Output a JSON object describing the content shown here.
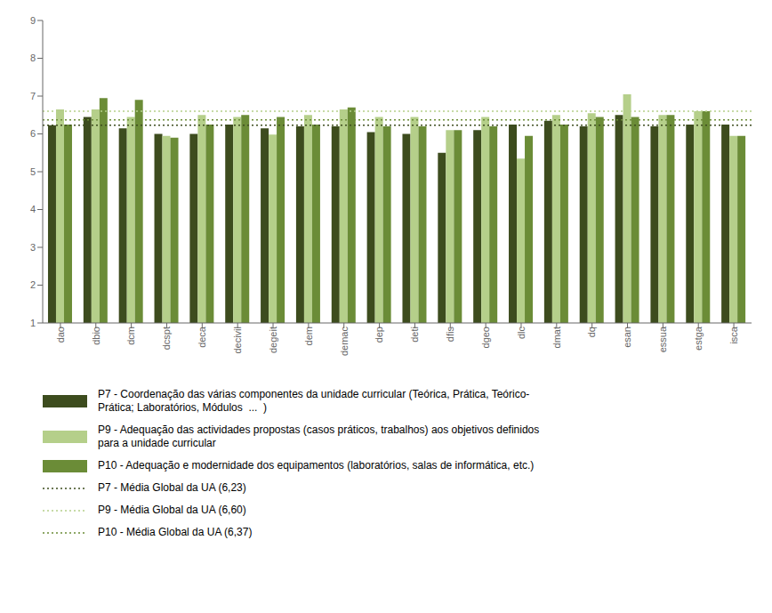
{
  "chart_data": {
    "type": "bar",
    "categories": [
      "dao",
      "dbio",
      "dcm",
      "dcspt",
      "deca",
      "decivil",
      "degeit",
      "dem",
      "demac",
      "dep",
      "deti",
      "dfis",
      "dgeo",
      "dlc",
      "dmat",
      "dq",
      "esan",
      "essua",
      "estga",
      "isca"
    ],
    "series": [
      {
        "name": "P7 - Coordenação das várias componentes da unidade curricular (Teórica, Prática, Teórico-\nPrática; Laboratórios, Módulos  ...  )",
        "color": "#3d4c1e",
        "values": [
          6.23,
          6.45,
          6.15,
          6.0,
          6.0,
          6.25,
          6.15,
          6.2,
          6.2,
          6.05,
          6.0,
          5.5,
          6.1,
          6.25,
          6.35,
          6.2,
          6.5,
          6.2,
          6.25,
          6.25
        ]
      },
      {
        "name": "P9 - Adequação das actividades propostas (casos práticos, trabalhos) aos objetivos definidos\npara a unidade curricular",
        "color": "#b5cf8a",
        "values": [
          6.65,
          6.65,
          6.45,
          5.95,
          6.5,
          6.45,
          5.98,
          6.5,
          6.65,
          6.45,
          6.45,
          6.1,
          6.45,
          5.35,
          6.5,
          6.55,
          7.05,
          6.5,
          6.6,
          5.95
        ]
      },
      {
        "name": "P10 - Adequação e modernidade dos equipamentos (laboratórios, salas de informática, etc.)",
        "color": "#6b8c37",
        "values": [
          6.25,
          6.95,
          6.9,
          5.9,
          6.25,
          6.5,
          6.45,
          6.25,
          6.7,
          6.2,
          6.2,
          6.1,
          6.2,
          5.95,
          6.25,
          6.45,
          6.45,
          6.5,
          6.6,
          5.95
        ]
      }
    ],
    "reference_lines": [
      {
        "name": "P7 - Média Global da UA (6,23)",
        "value": 6.23,
        "color": "#3d4c1e",
        "line_style": "dotted"
      },
      {
        "name": "P9 - Média Global da UA (6,60)",
        "value": 6.6,
        "color": "#b5cf8a",
        "line_style": "dotted"
      },
      {
        "name": "P10 - Média Global da UA (6,37)",
        "value": 6.37,
        "color": "#6b8c37",
        "line_style": "dotted"
      }
    ],
    "ylim": [
      1,
      9
    ],
    "yticks": [
      1,
      2,
      3,
      4,
      5,
      6,
      7,
      8,
      9
    ],
    "grid": false,
    "legend": "bottom"
  }
}
